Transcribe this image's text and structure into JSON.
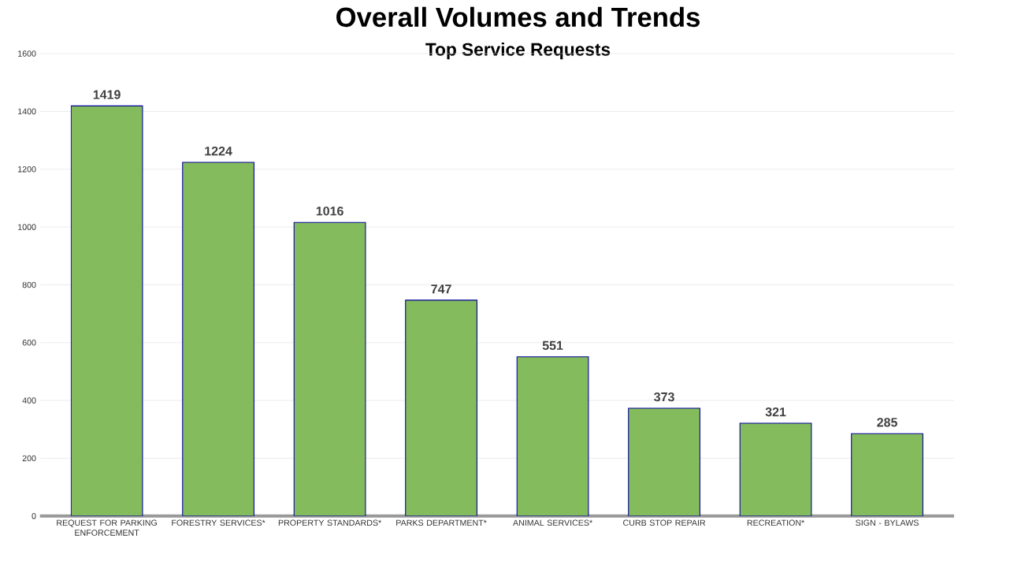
{
  "chart_data": {
    "type": "bar",
    "title": "Overall Volumes and Trends",
    "subtitle": "Top Service Requests",
    "categories": [
      "REQUEST FOR PARKING ENFORCEMENT",
      "FORESTRY SERVICES*",
      "PROPERTY STANDARDS*",
      "PARKS DEPARTMENT*",
      "ANIMAL SERVICES*",
      "CURB STOP REPAIR",
      "RECREATION*",
      "SIGN - BYLAWS"
    ],
    "values": [
      1419,
      1224,
      1016,
      747,
      551,
      373,
      321,
      285
    ],
    "color": "#84bb5c",
    "ylim": [
      0,
      1600
    ],
    "yticks": [
      0,
      200,
      400,
      600,
      800,
      1000,
      1200,
      1400,
      1600
    ],
    "grid": "y",
    "data_labels": true
  }
}
